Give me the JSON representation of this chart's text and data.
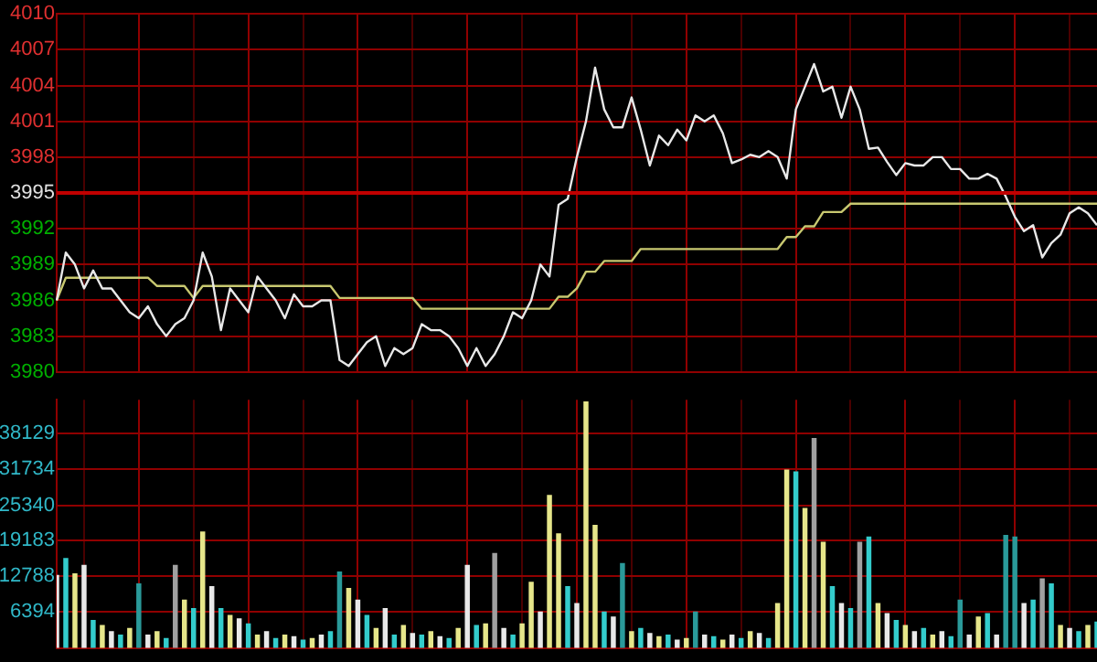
{
  "chart_data": [
    {
      "type": "line",
      "categories": [
        null,
        null,
        null,
        null,
        null,
        null,
        null,
        null,
        null,
        null,
        null,
        null,
        null,
        null,
        null,
        null,
        null,
        null,
        null,
        null,
        null,
        null,
        null,
        null,
        null,
        null,
        null,
        null,
        null,
        null,
        null,
        null,
        null,
        null,
        null,
        null,
        null,
        null,
        null,
        null,
        null,
        null,
        null,
        null,
        null,
        null,
        null,
        null,
        null,
        null,
        null,
        null,
        null,
        null,
        null,
        null,
        null,
        null,
        null,
        null,
        null,
        null,
        null,
        null,
        null,
        null,
        null,
        null,
        null,
        null,
        null,
        null,
        null,
        null,
        null,
        null,
        null,
        null,
        null,
        null,
        null,
        null,
        null,
        null,
        null,
        null,
        null,
        null,
        null,
        null,
        null,
        null,
        null,
        null,
        null,
        null,
        null,
        null,
        null,
        null,
        null,
        null,
        null,
        null,
        null,
        null,
        null,
        null,
        null,
        null,
        null,
        null,
        null,
        null,
        null
      ],
      "series": [
        {
          "color": "#e8e8e8",
          "values": [
            3986,
            3990,
            3989,
            3987,
            3988.5,
            3987,
            3987,
            3986,
            3985,
            3984.5,
            3985.5,
            3984,
            3983,
            3984,
            3984.5,
            3986,
            3990,
            3988,
            3983.5,
            3987,
            3986,
            3985,
            3988,
            3987,
            3986,
            3984.5,
            3986.5,
            3985.5,
            3985.5,
            3986,
            3986,
            3981,
            3980.5,
            3981.5,
            3982.5,
            3983,
            3980.5,
            3982,
            3981.5,
            3982,
            3984,
            3983.5,
            3983.5,
            3983,
            3982,
            3980.5,
            3982,
            3980.5,
            3981.5,
            3983,
            3985,
            3984.5,
            3986,
            3989,
            3988,
            3994,
            3994.5,
            3998,
            4001,
            4005.5,
            4002,
            4000.5,
            4000.5,
            4003,
            4000.3,
            3997.3,
            3999.8,
            3999,
            4000.3,
            3999.4,
            4001.5,
            4001,
            4001.5,
            4000,
            3997.5,
            3997.8,
            3998.2,
            3998,
            3998.5,
            3998,
            3996.2,
            4002,
            4003.9,
            4005.8,
            4003.5,
            4003.9,
            4001.3,
            4003.9,
            4002,
            3998.7,
            3998.8,
            3997.6,
            3996.5,
            3997.5,
            3997.3,
            3997.3,
            3998,
            3998,
            3997,
            3997,
            3996.2,
            3996.2,
            3996.6,
            3996.2,
            3994.7,
            3993,
            3991.8,
            3992.3,
            3989.6,
            3990.8,
            3991.5,
            3993.3,
            3993.8,
            3993.3,
            3992.3
          ]
        },
        {
          "color": "#c8c870",
          "values": [
            3986,
            3987.9,
            3987.9,
            3987.9,
            3987.9,
            3987.9,
            3987.9,
            3987.9,
            3987.9,
            3987.9,
            3987.9,
            3987.2,
            3987.2,
            3987.2,
            3987.2,
            3986.2,
            3987.2,
            3987.2,
            3987.2,
            3987.2,
            3987.2,
            3987.2,
            3987.2,
            3987.2,
            3987.2,
            3987.2,
            3987.2,
            3987.2,
            3987.2,
            3987.2,
            3987.2,
            3986.2,
            3986.2,
            3986.2,
            3986.2,
            3986.2,
            3986.2,
            3986.2,
            3986.2,
            3986.2,
            3985.3,
            3985.3,
            3985.3,
            3985.3,
            3985.3,
            3985.3,
            3985.3,
            3985.3,
            3985.3,
            3985.3,
            3985.3,
            3985.3,
            3985.3,
            3985.3,
            3985.3,
            3986.3,
            3986.3,
            3987,
            3988.4,
            3988.4,
            3989.3,
            3989.3,
            3989.3,
            3989.3,
            3990.3,
            3990.3,
            3990.3,
            3990.3,
            3990.3,
            3990.3,
            3990.3,
            3990.3,
            3990.3,
            3990.3,
            3990.3,
            3990.3,
            3990.3,
            3990.3,
            3990.3,
            3990.3,
            3991.3,
            3991.3,
            3992.2,
            3992.2,
            3993.4,
            3993.4,
            3993.4,
            3994.1,
            3994.1,
            3994.1,
            3994.1,
            3994.1,
            3994.1,
            3994.1,
            3994.1,
            3994.1,
            3994.1,
            3994.1,
            3994.1,
            3994.1,
            3994.1,
            3994.1,
            3994.1,
            3994.1,
            3994.1,
            3994.1,
            3994.1,
            3994.1,
            3994.1,
            3994.1,
            3994.1,
            3994.1,
            3994.1,
            3994.1,
            3994.1
          ]
        }
      ],
      "ylim": [
        3980,
        4010
      ],
      "yticks": [
        3980,
        3983,
        3986,
        3989,
        3992,
        3995,
        3998,
        4001,
        4004,
        4007,
        4010
      ],
      "ref_lines": [
        {
          "axis": "y",
          "value": 3995,
          "color": "#c00000"
        }
      ],
      "grid": true,
      "legend": false,
      "marker": "none",
      "tick_labels": "y"
    },
    {
      "type": "bar",
      "categories": [
        null,
        null,
        null,
        null,
        null,
        null,
        null,
        null,
        null,
        null,
        null,
        null,
        null,
        null,
        null,
        null,
        null,
        null,
        null,
        null,
        null,
        null,
        null,
        null,
        null,
        null,
        null,
        null,
        null,
        null,
        null,
        null,
        null,
        null,
        null,
        null,
        null,
        null,
        null,
        null,
        null,
        null,
        null,
        null,
        null,
        null,
        null,
        null,
        null,
        null,
        null,
        null,
        null,
        null,
        null,
        null,
        null,
        null,
        null,
        null,
        null,
        null,
        null,
        null,
        null,
        null,
        null,
        null,
        null,
        null,
        null,
        null,
        null,
        null,
        null,
        null,
        null,
        null,
        null,
        null,
        null,
        null,
        null,
        null,
        null,
        null,
        null,
        null,
        null,
        null,
        null,
        null,
        null,
        null,
        null,
        null,
        null,
        null,
        null,
        null,
        null,
        null,
        null,
        null,
        null,
        null,
        null,
        null,
        null,
        null,
        null,
        null,
        null,
        null,
        null
      ],
      "values": [
        13000,
        16000,
        13300,
        14800,
        5000,
        4100,
        3000,
        2400,
        3600,
        11500,
        2400,
        3000,
        1800,
        14800,
        8600,
        7100,
        20700,
        11000,
        7100,
        5900,
        5300,
        4400,
        2400,
        3000,
        1800,
        2400,
        2100,
        1500,
        1800,
        2400,
        3000,
        13600,
        10700,
        8600,
        5900,
        3600,
        7100,
        2400,
        4100,
        2700,
        2400,
        3000,
        2100,
        1800,
        3600,
        14800,
        4100,
        4400,
        16900,
        3600,
        2400,
        4400,
        11800,
        6500,
        27200,
        20400,
        11000,
        8000,
        43800,
        21900,
        6500,
        5600,
        15100,
        3000,
        3600,
        2700,
        2100,
        2400,
        1500,
        1800,
        6500,
        2400,
        2100,
        1500,
        2400,
        1800,
        3000,
        2700,
        1800,
        8000,
        31700,
        31400,
        24900,
        37300,
        18900,
        11000,
        8000,
        7100,
        18900,
        19800,
        8000,
        6200,
        5000,
        4100,
        3000,
        3600,
        2400,
        3000,
        2100,
        8600,
        2400,
        5600,
        6200,
        2400,
        20100,
        19800,
        8000,
        8600,
        12400,
        11500,
        4100,
        3600,
        3000,
        4100,
        4700
      ],
      "colors": [
        "#e8e8e8",
        "#33cccc",
        "#e6e68a",
        "#e8e8e8",
        "#33cccc",
        "#e6e68a",
        "#e8e8e8",
        "#33cccc",
        "#e6e68a",
        "#2a9a9a",
        "#e8e8e8",
        "#e6e68a",
        "#33cccc",
        "#a0a0a0",
        "#e6e68a",
        "#33cccc",
        "#e6e68a",
        "#e8e8e8",
        "#33cccc",
        "#e6e68a",
        "#e8e8e8",
        "#33cccc",
        "#e6e68a",
        "#e8e8e8",
        "#33cccc",
        "#e6e68a",
        "#e8e8e8",
        "#33cccc",
        "#e6e68a",
        "#e8e8e8",
        "#33cccc",
        "#2a9a9a",
        "#e6e68a",
        "#e8e8e8",
        "#33cccc",
        "#e6e68a",
        "#e8e8e8",
        "#33cccc",
        "#e6e68a",
        "#e8e8e8",
        "#33cccc",
        "#e6e68a",
        "#e8e8e8",
        "#33cccc",
        "#e6e68a",
        "#e8e8e8",
        "#33cccc",
        "#e6e68a",
        "#a0a0a0",
        "#e8e8e8",
        "#33cccc",
        "#e6e68a",
        "#e6e68a",
        "#e8e8e8",
        "#e6e68a",
        "#e6e68a",
        "#33cccc",
        "#e8e8e8",
        "#e6e68a",
        "#e6e68a",
        "#33cccc",
        "#e8e8e8",
        "#2a9a9a",
        "#e6e68a",
        "#33cccc",
        "#e8e8e8",
        "#e6e68a",
        "#33cccc",
        "#e8e8e8",
        "#e6e68a",
        "#2a9a9a",
        "#e8e8e8",
        "#33cccc",
        "#e6e68a",
        "#e8e8e8",
        "#33cccc",
        "#e6e68a",
        "#e8e8e8",
        "#33cccc",
        "#e6e68a",
        "#e6e68a",
        "#33cccc",
        "#e6e68a",
        "#a0a0a0",
        "#e6e68a",
        "#33cccc",
        "#e8e8e8",
        "#33cccc",
        "#a0a0a0",
        "#33cccc",
        "#e6e68a",
        "#e8e8e8",
        "#33cccc",
        "#e6e68a",
        "#e8e8e8",
        "#33cccc",
        "#e6e68a",
        "#e8e8e8",
        "#33cccc",
        "#2a9a9a",
        "#e8e8e8",
        "#e6e68a",
        "#33cccc",
        "#e8e8e8",
        "#2a9a9a",
        "#2a9a9a",
        "#e8e8e8",
        "#33cccc",
        "#a0a0a0",
        "#33cccc",
        "#e6e68a",
        "#e8e8e8",
        "#33cccc",
        "#e6e68a",
        "#33cccc"
      ],
      "ylim": [
        0,
        44100
      ],
      "yticks": [
        6394,
        12788,
        19183,
        25340,
        31734,
        38129
      ],
      "grid": true,
      "legend": false,
      "tick_labels": "y"
    }
  ]
}
